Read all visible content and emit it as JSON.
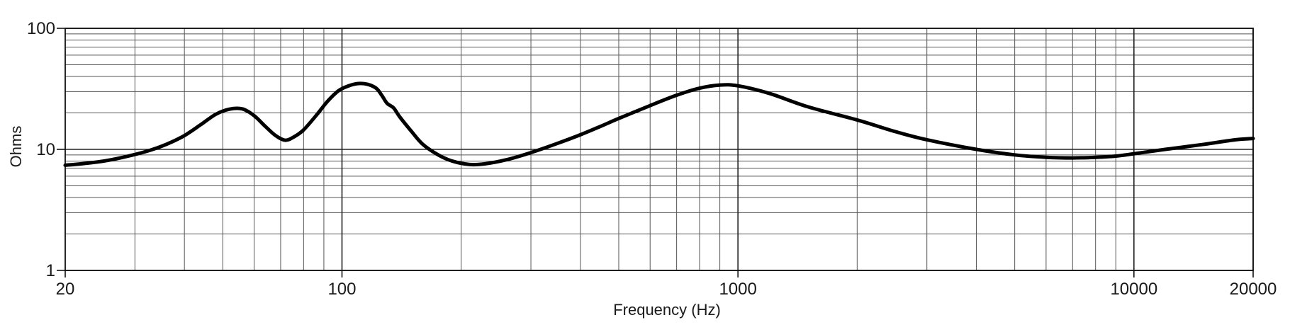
{
  "chart_data": {
    "type": "line",
    "title": "",
    "xlabel": "Frequency (Hz)",
    "ylabel": "Ohms",
    "x_scale": "log",
    "y_scale": "log",
    "xlim": [
      20,
      20000
    ],
    "ylim": [
      1,
      100
    ],
    "grid": true,
    "x_tick_labels": [
      {
        "value": 20,
        "label": "20"
      },
      {
        "value": 100,
        "label": "100"
      },
      {
        "value": 1000,
        "label": "1000"
      },
      {
        "value": 10000,
        "label": "10000"
      },
      {
        "value": 20000,
        "label": "20000"
      }
    ],
    "y_tick_labels": [
      {
        "value": 1,
        "label": "1"
      },
      {
        "value": 10,
        "label": "10"
      },
      {
        "value": 100,
        "label": "100"
      }
    ],
    "series": [
      {
        "line_color": "#000000",
        "points": [
          [
            20,
            7.4
          ],
          [
            22,
            7.6
          ],
          [
            25,
            8.0
          ],
          [
            28,
            8.6
          ],
          [
            32,
            9.6
          ],
          [
            36,
            11.0
          ],
          [
            40,
            13.0
          ],
          [
            44,
            16.0
          ],
          [
            48,
            19.5
          ],
          [
            52,
            21.5
          ],
          [
            56,
            21.6
          ],
          [
            60,
            19.0
          ],
          [
            64,
            15.5
          ],
          [
            68,
            13.0
          ],
          [
            72,
            11.9
          ],
          [
            76,
            12.8
          ],
          [
            80,
            14.5
          ],
          [
            86,
            19.0
          ],
          [
            92,
            25.0
          ],
          [
            98,
            30.5
          ],
          [
            104,
            33.5
          ],
          [
            110,
            35.0
          ],
          [
            116,
            34.5
          ],
          [
            122,
            32.0
          ],
          [
            126,
            28.0
          ],
          [
            130,
            24.0
          ],
          [
            135,
            22.0
          ],
          [
            140,
            18.5
          ],
          [
            150,
            14.0
          ],
          [
            160,
            11.0
          ],
          [
            175,
            9.0
          ],
          [
            190,
            8.0
          ],
          [
            210,
            7.5
          ],
          [
            230,
            7.6
          ],
          [
            260,
            8.2
          ],
          [
            300,
            9.4
          ],
          [
            350,
            11.2
          ],
          [
            400,
            13.2
          ],
          [
            450,
            15.5
          ],
          [
            500,
            18.0
          ],
          [
            600,
            23.0
          ],
          [
            700,
            28.0
          ],
          [
            800,
            32.0
          ],
          [
            900,
            34.0
          ],
          [
            1000,
            33.5
          ],
          [
            1200,
            29.0
          ],
          [
            1500,
            22.5
          ],
          [
            2000,
            17.5
          ],
          [
            2500,
            14.0
          ],
          [
            3000,
            12.0
          ],
          [
            4000,
            10.0
          ],
          [
            5000,
            9.0
          ],
          [
            6000,
            8.6
          ],
          [
            7000,
            8.5
          ],
          [
            8000,
            8.6
          ],
          [
            9000,
            8.8
          ],
          [
            10000,
            9.2
          ],
          [
            12000,
            10.0
          ],
          [
            15000,
            11.0
          ],
          [
            18000,
            12.0
          ],
          [
            20000,
            12.3
          ]
        ]
      }
    ]
  }
}
